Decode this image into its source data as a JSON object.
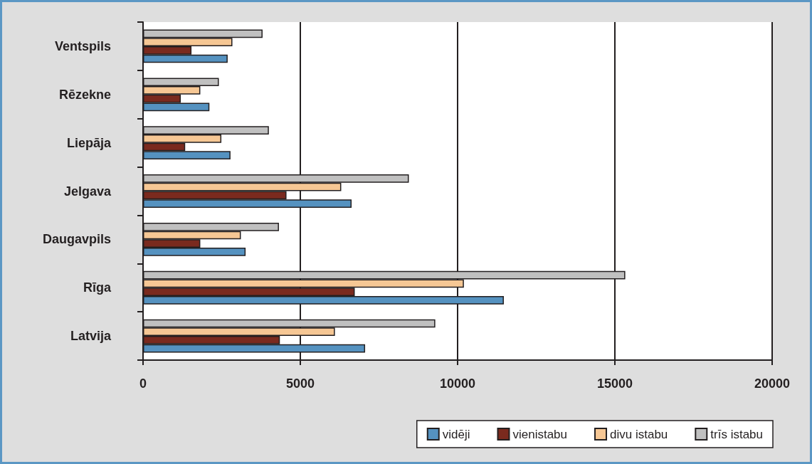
{
  "chart_data": {
    "type": "bar",
    "orientation": "horizontal",
    "categories": [
      "Ventspils",
      "Rēzekne",
      "Liepāja",
      "Jelgava",
      "Daugavpils",
      "Rīga",
      "Latvija"
    ],
    "series": [
      {
        "name": "vidēji",
        "color": "#5592c0",
        "values": [
          2690,
          2110,
          2780,
          6630,
          3260,
          11470,
          7060
        ]
      },
      {
        "name": "vienistabu",
        "color": "#7a2a1e",
        "values": [
          1540,
          1200,
          1340,
          4560,
          1820,
          6730,
          4350
        ]
      },
      {
        "name": "divu istabu",
        "color": "#f6c794",
        "values": [
          2840,
          1820,
          2490,
          6300,
          3110,
          10200,
          6100
        ]
      },
      {
        "name": "trīs istabu",
        "color": "#c0c0c0",
        "values": [
          3800,
          2410,
          4000,
          8450,
          4320,
          15330,
          9290
        ]
      }
    ],
    "xlim": [
      0,
      20000
    ],
    "xticks": [
      0,
      5000,
      10000,
      15000,
      20000
    ],
    "grid": "x",
    "legend": "bottom right"
  }
}
